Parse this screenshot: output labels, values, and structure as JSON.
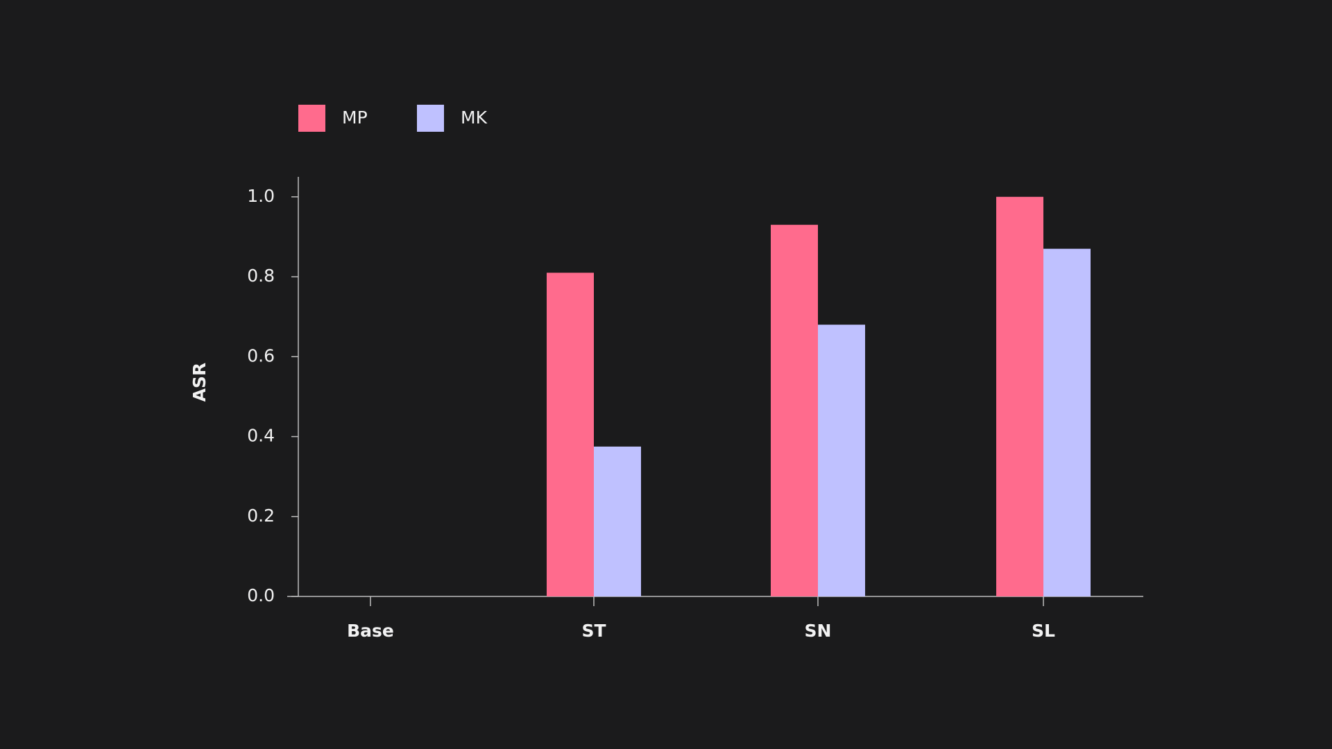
{
  "chart_data": {
    "type": "bar",
    "categories": [
      "Base",
      "ST",
      "SN",
      "SL"
    ],
    "series": [
      {
        "name": "MP",
        "color": "#ff6b8d",
        "values": [
          0,
          0.81,
          0.93,
          1.0
        ]
      },
      {
        "name": "MK",
        "color": "#bfc1ff",
        "values": [
          0,
          0.375,
          0.68,
          0.87
        ]
      }
    ],
    "y_label": "ASR",
    "ylim": [
      0,
      1.05
    ],
    "yticks": [
      {
        "value": 0,
        "label": "0.0"
      },
      0.2,
      0.4,
      0.6,
      0.8,
      {
        "value": 1,
        "label": "1.0"
      }
    ],
    "grid": false,
    "legend": "top-left"
  }
}
